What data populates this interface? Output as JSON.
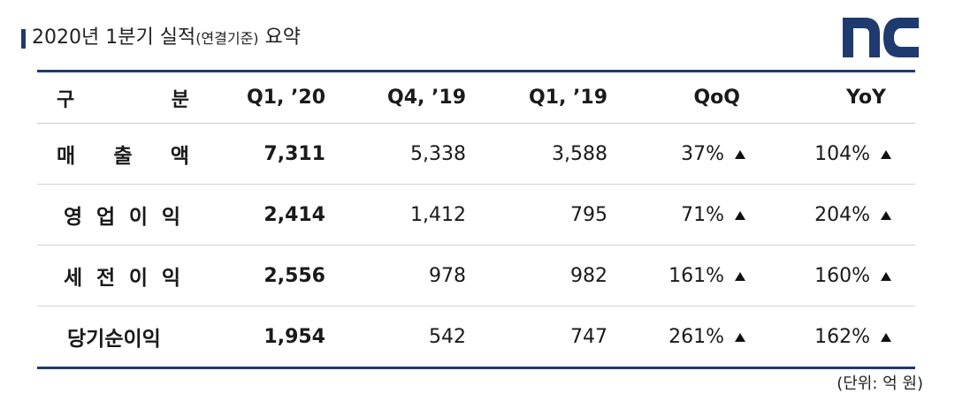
{
  "title": {
    "main_prefix": "2020년 1분기 실적",
    "main_small": "(연결기준)",
    "main_suffix": " 요약"
  },
  "logo": {
    "name": "nc-logo",
    "color": "#1f3a6e"
  },
  "table": {
    "header": {
      "label_left": "구",
      "label_right": "분",
      "q1_20": "Q1, ’20",
      "q4_19": "Q4, ’19",
      "q1_19": "Q1, ’19",
      "qoq": "QoQ",
      "yoy": "YoY"
    },
    "rows": [
      {
        "label_parts": [
          "매",
          "출",
          "액"
        ],
        "q1_20": "7,311",
        "q4_19": "5,338",
        "q1_19": "3,588",
        "qoq": "37%",
        "yoy": "104%"
      },
      {
        "label_parts": [
          "영",
          "업",
          "이",
          "익"
        ],
        "q1_20": "2,414",
        "q4_19": "1,412",
        "q1_19": "795",
        "qoq": "71%",
        "yoy": "204%"
      },
      {
        "label_parts": [
          "세",
          "전",
          "이",
          "익"
        ],
        "q1_20": "2,556",
        "q4_19": "978",
        "q1_19": "982",
        "qoq": "161%",
        "yoy": "160%"
      },
      {
        "label_parts": [
          "당기순이익"
        ],
        "q1_20": "1,954",
        "q4_19": "542",
        "q1_19": "747",
        "qoq": "261%",
        "yoy": "162%"
      }
    ],
    "trend_icon": "up-triangle-icon"
  },
  "unit_note": "(단위: 억 원)",
  "colors": {
    "accent_navy": "#1f3a6e",
    "text": "#1a1a1a",
    "row_divider": "#d4d4d4"
  }
}
